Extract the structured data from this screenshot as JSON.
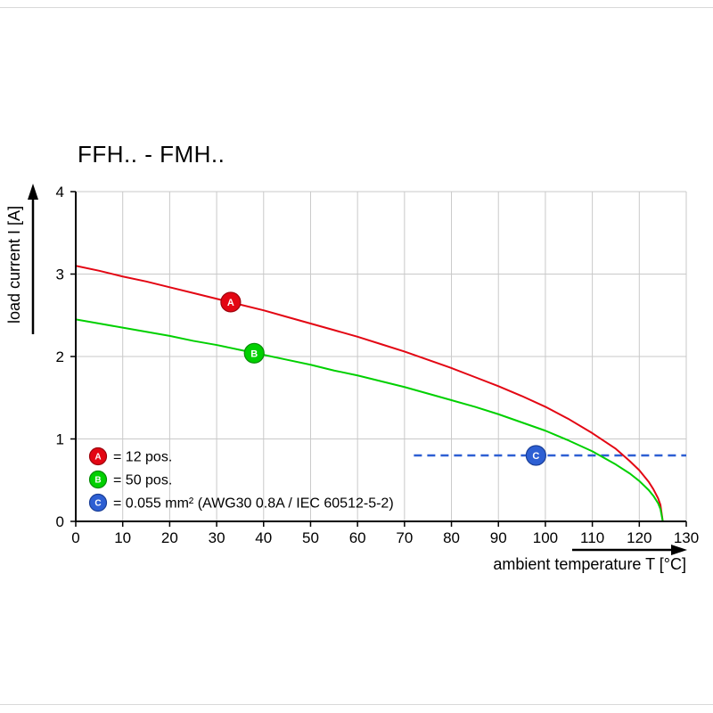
{
  "chart_data": {
    "type": "line",
    "title": "FFH.. - FMH..",
    "xlabel": "ambient temperature T [°C]",
    "ylabel": "load current I [A]",
    "xlim": [
      0,
      130
    ],
    "ylim": [
      0,
      4
    ],
    "xticks": [
      0,
      10,
      20,
      30,
      40,
      50,
      60,
      70,
      80,
      90,
      100,
      110,
      120,
      130
    ],
    "yticks": [
      0,
      1,
      2,
      3,
      4
    ],
    "grid": true,
    "grid_color": "#c9c9c9",
    "axis_color": "#000000",
    "series": [
      {
        "name": "A",
        "legend_label": "= 12 pos.",
        "color": "#e30613",
        "edge": "#9c040d",
        "marker": {
          "letter": "A",
          "t": 33,
          "i": 2.66
        },
        "x": [
          0,
          5,
          10,
          15,
          20,
          25,
          30,
          35,
          40,
          45,
          50,
          55,
          60,
          65,
          70,
          75,
          80,
          85,
          90,
          95,
          100,
          105,
          110,
          115,
          118,
          120,
          122,
          123,
          124,
          124.5,
          125
        ],
        "y": [
          3.1,
          3.04,
          2.97,
          2.91,
          2.84,
          2.77,
          2.7,
          2.63,
          2.56,
          2.48,
          2.4,
          2.32,
          2.24,
          2.15,
          2.06,
          1.96,
          1.86,
          1.75,
          1.64,
          1.52,
          1.39,
          1.24,
          1.07,
          0.88,
          0.73,
          0.62,
          0.48,
          0.39,
          0.28,
          0.2,
          0.0
        ]
      },
      {
        "name": "B",
        "legend_label": "= 50 pos.",
        "color": "#00d000",
        "edge": "#078a07",
        "marker": {
          "letter": "B",
          "t": 38,
          "i": 2.04
        },
        "x": [
          0,
          5,
          10,
          15,
          20,
          25,
          30,
          35,
          40,
          45,
          50,
          55,
          60,
          65,
          70,
          75,
          80,
          85,
          90,
          95,
          100,
          105,
          110,
          115,
          118,
          120,
          122,
          123,
          124,
          124.5,
          125
        ],
        "y": [
          2.45,
          2.4,
          2.35,
          2.3,
          2.25,
          2.19,
          2.14,
          2.08,
          2.02,
          1.96,
          1.9,
          1.83,
          1.77,
          1.7,
          1.63,
          1.55,
          1.47,
          1.39,
          1.3,
          1.2,
          1.1,
          0.98,
          0.85,
          0.69,
          0.58,
          0.49,
          0.38,
          0.31,
          0.22,
          0.15,
          0.0
        ]
      }
    ],
    "reference_line": {
      "name": "C",
      "legend_label": "= 0.055 mm² (AWG30 0.8A / IEC 60512-5-2)",
      "color": "#2d5fd3",
      "edge": "#1a3f97",
      "value": 0.8,
      "x_start": 72,
      "x_end": 130,
      "style": "dashed",
      "marker": {
        "letter": "C",
        "t": 98,
        "i": 0.8
      }
    },
    "legend": [
      {
        "letter": "A",
        "color": "#e30613",
        "edge": "#9c040d",
        "text": "= 12 pos."
      },
      {
        "letter": "B",
        "color": "#00d000",
        "edge": "#078a07",
        "text": "= 50 pos."
      },
      {
        "letter": "C",
        "color": "#2d5fd3",
        "edge": "#1a3f97",
        "text": "= 0.055 mm² (AWG30 0.8A / IEC 60512-5-2)"
      }
    ],
    "legend_position": "lower-left"
  }
}
